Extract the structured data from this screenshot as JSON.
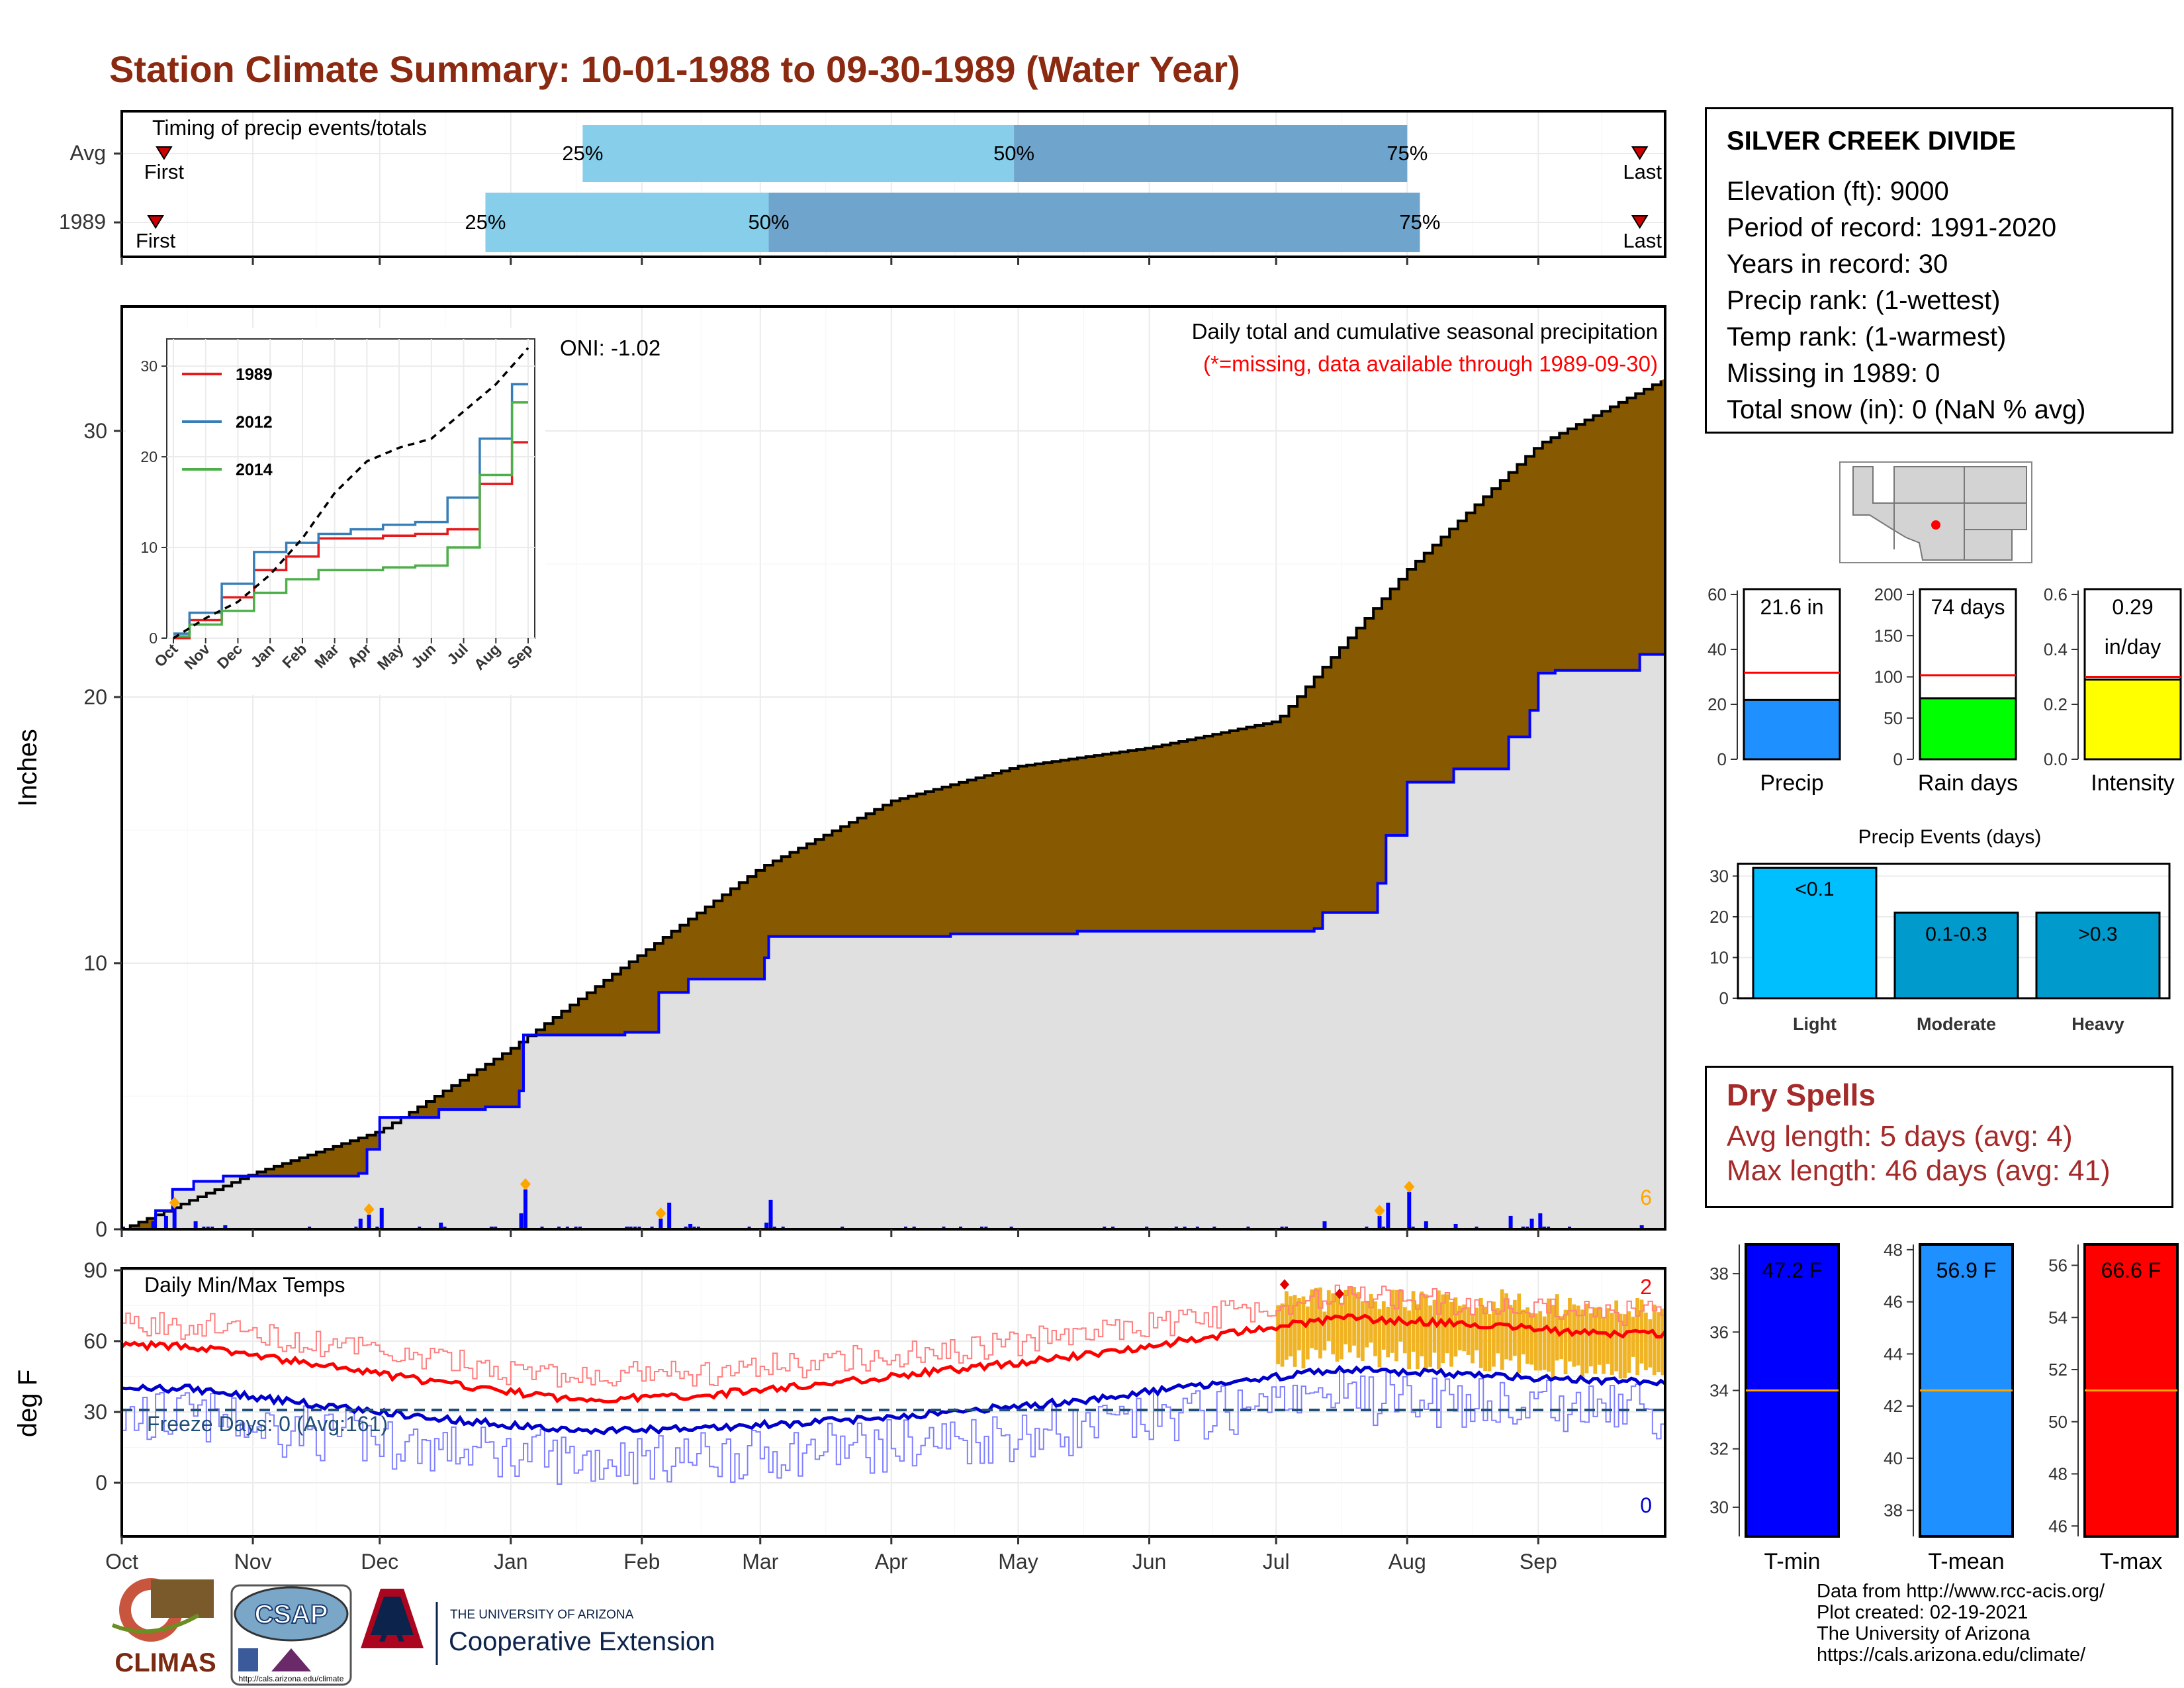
{
  "title": "Station Climate Summary: 10-01-1988 to 09-30-1989 (Water Year)",
  "timing": {
    "label": "Timing of precip events/totals",
    "rows": [
      {
        "name": "Avg",
        "first": "First",
        "last": "Last",
        "p25": "25%",
        "p50": "50%",
        "p75": "75%",
        "first_date": "1988-10-11",
        "last_date": "1989-09-25",
        "p25_date": "1989-01-18",
        "p50_date": "1989-04-30",
        "p75_date": "1989-08-01"
      },
      {
        "name": "1989",
        "first": "First",
        "last": "Last",
        "p25": "25%",
        "p50": "50%",
        "p75": "75%",
        "first_date": "1988-10-09",
        "last_date": "1989-09-25",
        "p25_date": "1988-12-26",
        "p50_date": "1989-03-03",
        "p75_date": "1989-08-04"
      }
    ]
  },
  "months": [
    "Oct",
    "Nov",
    "Dec",
    "Jan",
    "Feb",
    "Mar",
    "Apr",
    "May",
    "Jun",
    "Jul",
    "Aug",
    "Sep"
  ],
  "precip": {
    "ylabel": "Inches",
    "header": "Daily total and cumulative seasonal precipitation",
    "missing_note": "(*=missing, data available through 1989-09-30)",
    "oni": "ONI: -1.02",
    "count_label": "6",
    "yticks": [
      "0",
      "10",
      "20",
      "30"
    ]
  },
  "inset": {
    "legend": [
      "1989",
      "2012",
      "2014"
    ],
    "yticks": [
      "0",
      "10",
      "20",
      "30"
    ],
    "months": [
      "Oct",
      "Nov",
      "Dec",
      "Jan",
      "Feb",
      "Mar",
      "Apr",
      "May",
      "Jun",
      "Jul",
      "Aug",
      "Sep"
    ]
  },
  "temps": {
    "ylabel": "deg F",
    "label": "Daily Min/Max Temps",
    "freeze": "Freeze Days: 0 (Avg:161)",
    "count_max": "2",
    "count_min": "0",
    "yticks": [
      "0",
      "30",
      "60",
      "90"
    ]
  },
  "station": {
    "name": "SILVER CREEK DIVIDE",
    "lines": [
      "Elevation (ft): 9000",
      "Period of record: 1991-2020",
      "Years in record: 30",
      "Precip rank:  (1-wettest)",
      "Temp rank:  (1-warmest)",
      "Missing in 1989: 0",
      "Total snow (in): 0 (NaN % avg)"
    ]
  },
  "bars": [
    {
      "label": "Precip",
      "value_text": "21.6 in",
      "yticks": [
        "0",
        "20",
        "40",
        "60"
      ],
      "color": "#1e90ff"
    },
    {
      "label": "Rain days",
      "value_text": "74 days",
      "yticks": [
        "0",
        "50",
        "100",
        "150",
        "200"
      ],
      "color": "#00ff00"
    },
    {
      "label": "Intensity",
      "value_text": "0.29",
      "value_text2": "in/day",
      "yticks": [
        "0.0",
        "0.2",
        "0.4",
        "0.6"
      ],
      "color": "#ffff00"
    }
  ],
  "events": {
    "title": "Precip Events (days)",
    "yticks": [
      "0",
      "10",
      "20",
      "30"
    ],
    "cats": [
      "Light",
      "Moderate",
      "Heavy"
    ],
    "labels": [
      "<0.1",
      "0.1-0.3",
      ">0.3"
    ]
  },
  "dry": {
    "title": "Dry Spells",
    "avg": "Avg length: 5 days (avg: 4)",
    "max": "Max length: 46 days (avg: 41)"
  },
  "tbars": [
    {
      "label": "T-min",
      "value_text": "47.2 F",
      "yticks": [
        "30",
        "32",
        "34",
        "36",
        "38"
      ],
      "color": "#0000ff"
    },
    {
      "label": "T-mean",
      "value_text": "56.9 F",
      "yticks": [
        "38",
        "40",
        "42",
        "44",
        "46",
        "48"
      ],
      "color": "#1e90ff"
    },
    {
      "label": "T-max",
      "value_text": "66.6 F",
      "yticks": [
        "46",
        "48",
        "50",
        "52",
        "54",
        "56"
      ],
      "color": "#ff0000"
    }
  ],
  "credits": [
    "Data from http://www.rcc-acis.org/",
    "Plot created: 02-19-2021",
    "The University of Arizona",
    "https://cals.arizona.edu/climate/"
  ],
  "logos": {
    "climas": "CLIMAS",
    "csap": "CSAP",
    "csap_url": "http://cals.arizona.edu/climate",
    "ua_top": "THE UNIVERSITY OF ARIZONA",
    "ua_bottom": "Cooperative Extension",
    "ua_mark": "A"
  },
  "chart_data": [
    {
      "type": "bar",
      "title": "Timing of precip events/totals",
      "categories": [
        "Avg",
        "1989"
      ],
      "series": [
        {
          "name": "25%",
          "values": [
            "1989-01-18",
            "1988-12-26"
          ]
        },
        {
          "name": "50%",
          "values": [
            "1989-04-30",
            "1989-03-03"
          ]
        },
        {
          "name": "75%",
          "values": [
            "1989-08-01",
            "1989-08-04"
          ]
        }
      ]
    },
    {
      "type": "area",
      "title": "Daily total and cumulative seasonal precipitation",
      "ylabel": "Inches",
      "ylim": [
        0,
        35
      ],
      "x": [
        "1988-10-01",
        "1988-11-01",
        "1988-12-01",
        "1989-01-01",
        "1989-02-01",
        "1989-03-01",
        "1989-04-01",
        "1989-05-01",
        "1989-06-01",
        "1989-07-01",
        "1989-08-01",
        "1989-09-01",
        "1989-09-30"
      ],
      "series": [
        {
          "values": [
            0,
            1.9,
            4.2,
            7.2,
            8.9,
            10.9,
            11.1,
            11.1,
            11.2,
            11.9,
            16.8,
            19.3,
            21.6
          ]
        },
        {
          "values": [
            0,
            2.1,
            3.7,
            6.8,
            10.4,
            13.6,
            16.1,
            17.4,
            18.1,
            19.1,
            24.8,
            29.5,
            31.9
          ]
        }
      ]
    },
    {
      "type": "line",
      "xlabel": "",
      "ylim": [
        0,
        33
      ],
      "x": [
        "Oct",
        "Nov",
        "Dec",
        "Jan",
        "Feb",
        "Mar",
        "Apr",
        "May",
        "Jun",
        "Jul",
        "Aug",
        "Sep"
      ],
      "series": [
        {
          "name": "1989",
          "values": [
            0,
            2,
            4.5,
            7.5,
            9,
            11,
            11,
            11.3,
            11.5,
            12,
            17,
            21.6
          ]
        },
        {
          "name": "2012",
          "values": [
            0.5,
            2.8,
            6,
            9.5,
            10.5,
            11.5,
            12,
            12.5,
            12.8,
            15.5,
            22,
            28
          ]
        },
        {
          "name": "2014",
          "values": [
            0.2,
            1.5,
            3,
            5,
            6.5,
            7.5,
            7.5,
            7.8,
            8,
            10,
            18,
            26
          ]
        },
        {
          "values": [
            0,
            2.2,
            4,
            7,
            11,
            16,
            19.5,
            21,
            22,
            25,
            28,
            32
          ]
        }
      ]
    },
    {
      "type": "line",
      "title": "Daily Min/Max Temps",
      "ylabel": "deg F",
      "ylim": [
        -17,
        93
      ],
      "x": [
        "Oct",
        "Nov",
        "Dec",
        "Jan",
        "Feb",
        "Mar",
        "Apr",
        "May",
        "Jun",
        "Jul",
        "Aug",
        "Sep"
      ],
      "series": [
        {
          "values": [
            58,
            50,
            42,
            35,
            37,
            42,
            48,
            54,
            62,
            70,
            67,
            63
          ]
        },
        {
          "values": [
            40,
            33,
            27,
            22,
            23,
            26,
            30,
            35,
            42,
            48,
            46,
            43
          ]
        }
      ]
    },
    {
      "type": "bar",
      "categories": [
        "Light",
        "Moderate",
        "Heavy"
      ],
      "values": [
        32,
        21,
        21
      ],
      "ylim": [
        0,
        33
      ]
    },
    {
      "type": "bar",
      "categories": [
        "Precip",
        "Rain days",
        "Intensity"
      ],
      "values": [
        21.6,
        74,
        0.29
      ]
    },
    {
      "type": "bar",
      "categories": [
        "T-min",
        "T-mean",
        "T-max"
      ],
      "values": [
        47.2,
        56.9,
        66.6
      ]
    }
  ]
}
